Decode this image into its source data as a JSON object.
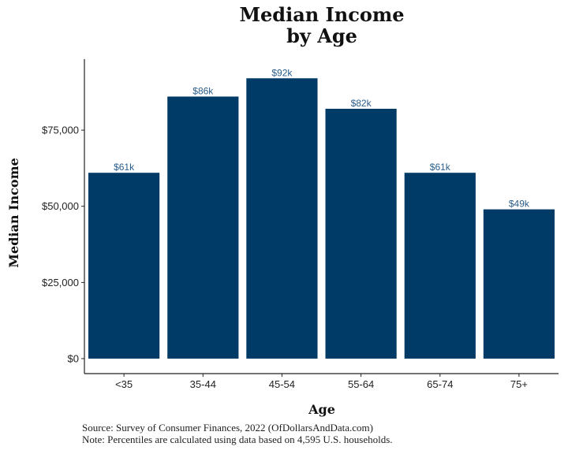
{
  "chart_data": {
    "type": "bar",
    "title_lines": [
      "Median Income",
      "by Age"
    ],
    "xlabel": "Age",
    "ylabel": "Median Income",
    "categories": [
      "<35",
      "35-44",
      "45-54",
      "55-64",
      "65-74",
      "75+"
    ],
    "values": [
      61000,
      86000,
      92000,
      82000,
      61000,
      49000
    ],
    "data_labels": [
      "$61k",
      "$86k",
      "$92k",
      "$82k",
      "$61k",
      "$49k"
    ],
    "yticks": [
      0,
      25000,
      50000,
      75000
    ],
    "ytick_labels": [
      "$0",
      "$25,000",
      "$50,000",
      "$75,000"
    ],
    "ylim": [
      0,
      97000
    ],
    "grid": false,
    "bar_color": "#003a66",
    "label_color": "#2b5d8a"
  },
  "captions": {
    "source": "Source:  Survey of Consumer Finances, 2022 (OfDollarsAndData.com)",
    "note": "Note: Percentiles are calculated using data based on 4,595 U.S. households."
  }
}
